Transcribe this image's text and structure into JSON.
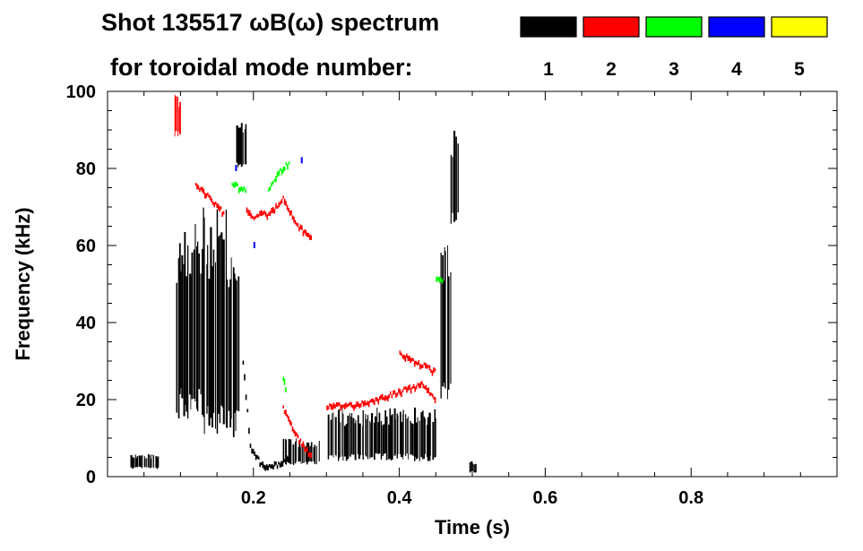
{
  "header": {
    "title_line1": "Shot 135517 ωB(ω) spectrum",
    "title_line2": "for toroidal mode number:"
  },
  "legend": [
    {
      "mode": "1",
      "color": "#000000"
    },
    {
      "mode": "2",
      "color": "#ff0000"
    },
    {
      "mode": "3",
      "color": "#00ff00"
    },
    {
      "mode": "4",
      "color": "#0000ff"
    },
    {
      "mode": "5",
      "color": "#ffff00"
    }
  ],
  "chart_data": {
    "type": "heatmap",
    "title": "Shot 135517 ωB(ω) spectrum",
    "xlabel": "Time (s)",
    "ylabel": "Frequency (kHz)",
    "xlim": [
      0.0,
      1.0
    ],
    "ylim": [
      0,
      100
    ],
    "x_ticks": [
      0.2,
      0.4,
      0.6,
      0.8
    ],
    "x_tick_labels": [
      "0.2",
      "0.4",
      "0.6",
      "0.8"
    ],
    "y_ticks": [
      0,
      20,
      40,
      60,
      80,
      100
    ],
    "y_tick_labels": [
      "0",
      "20",
      "40",
      "60",
      "80",
      "100"
    ],
    "series": [
      {
        "name": "1",
        "color": "#000000",
        "features": [
          {
            "kind": "band",
            "t": [
              0.03,
              0.07
            ],
            "f": [
              2,
              6
            ]
          },
          {
            "kind": "band",
            "t": [
              0.093,
              0.13
            ],
            "f": [
              15,
              68
            ]
          },
          {
            "kind": "band",
            "t": [
              0.13,
              0.18
            ],
            "f": [
              10,
              70
            ]
          },
          {
            "kind": "band",
            "t": [
              0.175,
              0.19
            ],
            "f": [
              80,
              92
            ]
          },
          {
            "kind": "trace",
            "t": [
              0.185,
              0.195,
              0.21,
              0.23,
              0.25
            ],
            "f": [
              30,
              8,
              3,
              3,
              5
            ]
          },
          {
            "kind": "band",
            "t": [
              0.24,
              0.29
            ],
            "f": [
              3,
              10
            ]
          },
          {
            "kind": "band",
            "t": [
              0.3,
              0.45
            ],
            "f": [
              4,
              18
            ]
          },
          {
            "kind": "band",
            "t": [
              0.455,
              0.47
            ],
            "f": [
              20,
              60
            ]
          },
          {
            "kind": "band",
            "t": [
              0.47,
              0.48
            ],
            "f": [
              65,
              90
            ]
          },
          {
            "kind": "band",
            "t": [
              0.495,
              0.505
            ],
            "f": [
              1,
              4
            ]
          }
        ]
      },
      {
        "name": "2",
        "color": "#ff0000",
        "features": [
          {
            "kind": "band",
            "t": [
              0.09,
              0.1
            ],
            "f": [
              88,
              100
            ]
          },
          {
            "kind": "trace",
            "t": [
              0.12,
              0.14,
              0.16
            ],
            "f": [
              76,
              72,
              68
            ]
          },
          {
            "kind": "trace",
            "t": [
              0.19,
              0.2,
              0.21,
              0.22,
              0.23,
              0.24,
              0.26,
              0.28
            ],
            "f": [
              70,
              67,
              69,
              68,
              70,
              72,
              65,
              62
            ]
          },
          {
            "kind": "trace",
            "t": [
              0.24,
              0.26,
              0.28
            ],
            "f": [
              18,
              10,
              5
            ]
          },
          {
            "kind": "trace",
            "t": [
              0.3,
              0.35,
              0.4,
              0.43,
              0.45
            ],
            "f": [
              18,
              19,
              22,
              24,
              20
            ]
          },
          {
            "kind": "trace",
            "t": [
              0.4,
              0.42,
              0.45
            ],
            "f": [
              32,
              30,
              27
            ]
          }
        ]
      },
      {
        "name": "3",
        "color": "#00ff00",
        "features": [
          {
            "kind": "trace",
            "t": [
              0.17,
              0.19
            ],
            "f": [
              76,
              74
            ]
          },
          {
            "kind": "trace",
            "t": [
              0.22,
              0.23,
              0.24,
              0.25
            ],
            "f": [
              74,
              78,
              80,
              82
            ]
          },
          {
            "kind": "trace",
            "t": [
              0.24,
              0.245
            ],
            "f": [
              26,
              22
            ]
          },
          {
            "kind": "trace",
            "t": [
              0.45,
              0.46
            ],
            "f": [
              52,
              50
            ]
          }
        ]
      },
      {
        "name": "4",
        "color": "#0000ff",
        "features": [
          {
            "kind": "points",
            "t": [
              0.175,
              0.265,
              0.2
            ],
            "f": [
              80,
              82,
              60
            ]
          }
        ]
      },
      {
        "name": "5",
        "color": "#ffff00",
        "features": []
      }
    ]
  }
}
